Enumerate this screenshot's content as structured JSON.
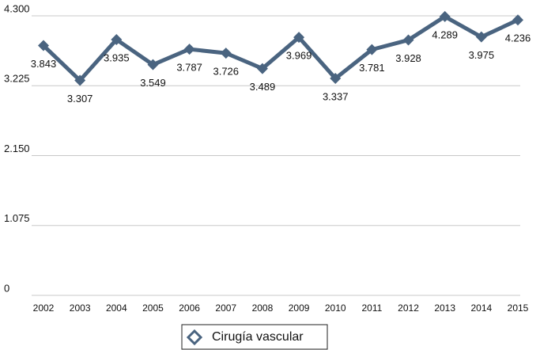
{
  "chart_data": {
    "type": "line",
    "categories": [
      "2002",
      "2003",
      "2004",
      "2005",
      "2006",
      "2007",
      "2008",
      "2009",
      "2010",
      "2011",
      "2012",
      "2013",
      "2014",
      "2015"
    ],
    "series": [
      {
        "name": "Cirugía vascular",
        "color": "#4a6480",
        "values": [
          3843,
          3307,
          3935,
          3549,
          3787,
          3726,
          3489,
          3969,
          3337,
          3781,
          3928,
          4289,
          3975,
          4236
        ],
        "value_labels": [
          "3.843",
          "3.307",
          "3.935",
          "3.549",
          "3.787",
          "3.726",
          "3.489",
          "3.969",
          "3.337",
          "3.781",
          "3.928",
          "4.289",
          "3.975",
          "4.236"
        ]
      }
    ],
    "ylim": [
      0,
      4300
    ],
    "yticks": [
      {
        "value": 0,
        "label": "0"
      },
      {
        "value": 1075,
        "label": "1.075"
      },
      {
        "value": 2150,
        "label": "2.150"
      },
      {
        "value": 3225,
        "label": "3.225"
      },
      {
        "value": 4300,
        "label": "4.300"
      }
    ],
    "grid": true,
    "legend": "bottom"
  }
}
